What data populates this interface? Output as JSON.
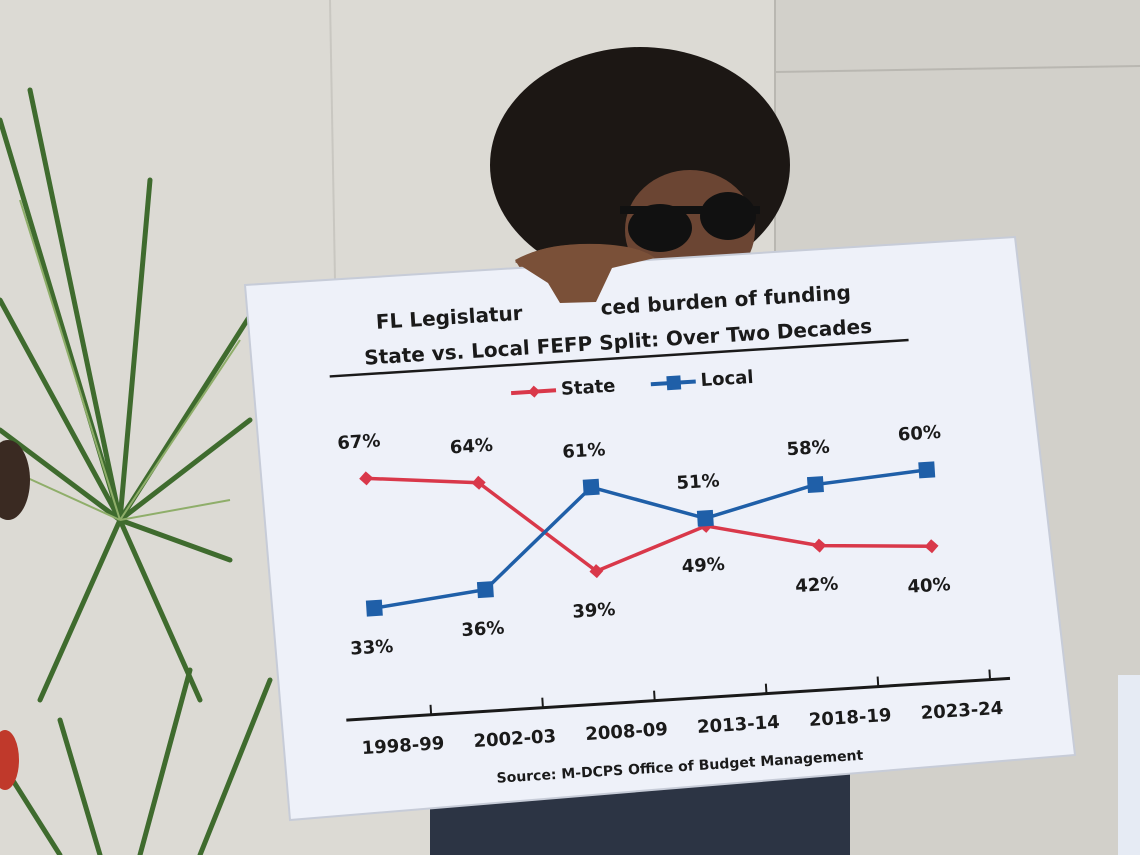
{
  "chart_data": {
    "type": "line",
    "title": [
      "FL Legislatur",
      "ced burden of funding"
    ],
    "subtitle": "State vs. Local FEFP Split: Over Two Decades",
    "source": "Source: M-DCPS Office of Budget Management",
    "categories": [
      "1998-99",
      "2002-03",
      "2008-09",
      "2013-14",
      "2018-19",
      "2023-24"
    ],
    "series": [
      {
        "name": "State",
        "color": "#d9384a",
        "marker": "diamond",
        "values": [
          67,
          64,
          39,
          49,
          42,
          40
        ],
        "value_labels": [
          "67%",
          "64%",
          "39%",
          "49%",
          "42%",
          "40%"
        ]
      },
      {
        "name": "Local",
        "color": "#1f5fa8",
        "marker": "square",
        "values": [
          33,
          36,
          61,
          51,
          58,
          60
        ],
        "value_labels": [
          "33%",
          "36%",
          "61%",
          "51%",
          "58%",
          "60%"
        ]
      }
    ]
  }
}
